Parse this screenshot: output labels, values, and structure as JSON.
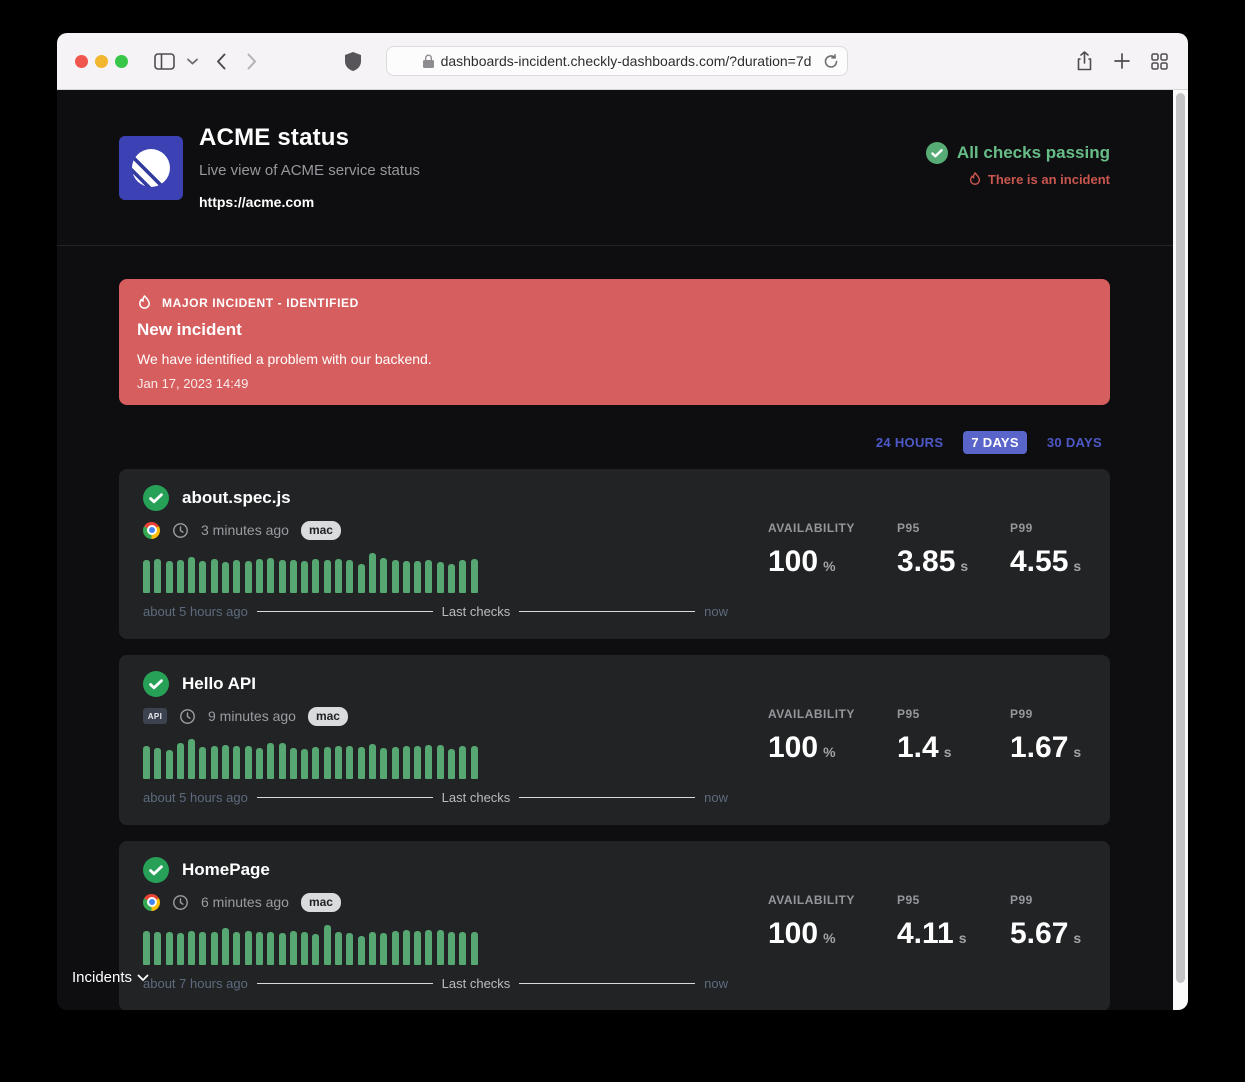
{
  "browser": {
    "url": "dashboards-incident.checkly-dashboards.com/?duration=7d",
    "traffic_lights": {
      "close": "#f0564d",
      "minimize": "#f3b62f",
      "zoom": "#37c648"
    }
  },
  "header": {
    "title": "ACME status",
    "subtitle": "Live view of ACME service status",
    "link": "https://acme.com",
    "status_ok": "All checks passing",
    "status_incident": "There is an incident"
  },
  "incident_banner": {
    "severity": "MAJOR INCIDENT - IDENTIFIED",
    "title": "New incident",
    "message": "We have identified a problem with our backend.",
    "timestamp": "Jan 17, 2023 14:49"
  },
  "duration_tabs": [
    {
      "label": "24 HOURS",
      "active": false
    },
    {
      "label": "7 DAYS",
      "active": true
    },
    {
      "label": "30 DAYS",
      "active": false
    }
  ],
  "checks": [
    {
      "name": "about.spec.js",
      "check_type": "browser",
      "last_run": "3 minutes ago",
      "location_tag": "mac",
      "timeline": {
        "start": "about 5 hours ago",
        "label": "Last checks",
        "end": "now"
      },
      "stats": {
        "availability_label": "AVAILABILITY",
        "availability_value": "100",
        "availability_unit": "%",
        "p95_label": "P95",
        "p95_value": "3.85",
        "p95_unit": "s",
        "p99_label": "P99",
        "p99_value": "4.55",
        "p99_unit": "s"
      },
      "chart": {
        "type": "bar",
        "color": "#57a773",
        "values": [
          33,
          34,
          32,
          33,
          36,
          32,
          34,
          31,
          33,
          32,
          34,
          35,
          33,
          33,
          32,
          34,
          33,
          34,
          33,
          29,
          40,
          35,
          33,
          32,
          32,
          33,
          31,
          29,
          33,
          34
        ]
      }
    },
    {
      "name": "Hello API",
      "check_type": "api",
      "api_badge": "API",
      "last_run": "9 minutes ago",
      "location_tag": "mac",
      "timeline": {
        "start": "about 5 hours ago",
        "label": "Last checks",
        "end": "now"
      },
      "stats": {
        "availability_label": "AVAILABILITY",
        "availability_value": "100",
        "availability_unit": "%",
        "p95_label": "P95",
        "p95_value": "1.4",
        "p95_unit": "s",
        "p99_label": "P99",
        "p99_value": "1.67",
        "p99_unit": "s"
      },
      "chart": {
        "type": "bar",
        "color": "#57a773",
        "values": [
          33,
          31,
          29,
          36,
          40,
          32,
          33,
          34,
          33,
          33,
          31,
          36,
          36,
          31,
          30,
          32,
          32,
          33,
          33,
          32,
          35,
          31,
          32,
          33,
          33,
          34,
          34,
          30,
          33,
          33
        ]
      }
    },
    {
      "name": "HomePage",
      "check_type": "browser",
      "last_run": "6 minutes ago",
      "location_tag": "mac",
      "timeline": {
        "start": "about 7 hours ago",
        "label": "Last checks",
        "end": "now"
      },
      "stats": {
        "availability_label": "AVAILABILITY",
        "availability_value": "100",
        "availability_unit": "%",
        "p95_label": "P95",
        "p95_value": "4.11",
        "p95_unit": "s",
        "p99_label": "P99",
        "p99_value": "5.67",
        "p99_unit": "s"
      },
      "chart": {
        "type": "bar",
        "color": "#57a773",
        "values": [
          34,
          33,
          33,
          32,
          34,
          33,
          33,
          37,
          33,
          34,
          33,
          33,
          32,
          34,
          33,
          31,
          40,
          33,
          32,
          29,
          33,
          32,
          34,
          35,
          34,
          35,
          35,
          33,
          33,
          33
        ]
      }
    }
  ],
  "footer": {
    "incidents": "Incidents"
  },
  "colors": {
    "page_bg": "#0e0e10",
    "card_bg": "#212325",
    "accent_indigo": "#5a65ca",
    "success_green": "#67bd88",
    "check_green": "#27a157",
    "bar_green": "#57a773",
    "danger_red": "#c9564f",
    "banner_red": "#d75e5e",
    "logo_indigo": "#3c42b3"
  }
}
